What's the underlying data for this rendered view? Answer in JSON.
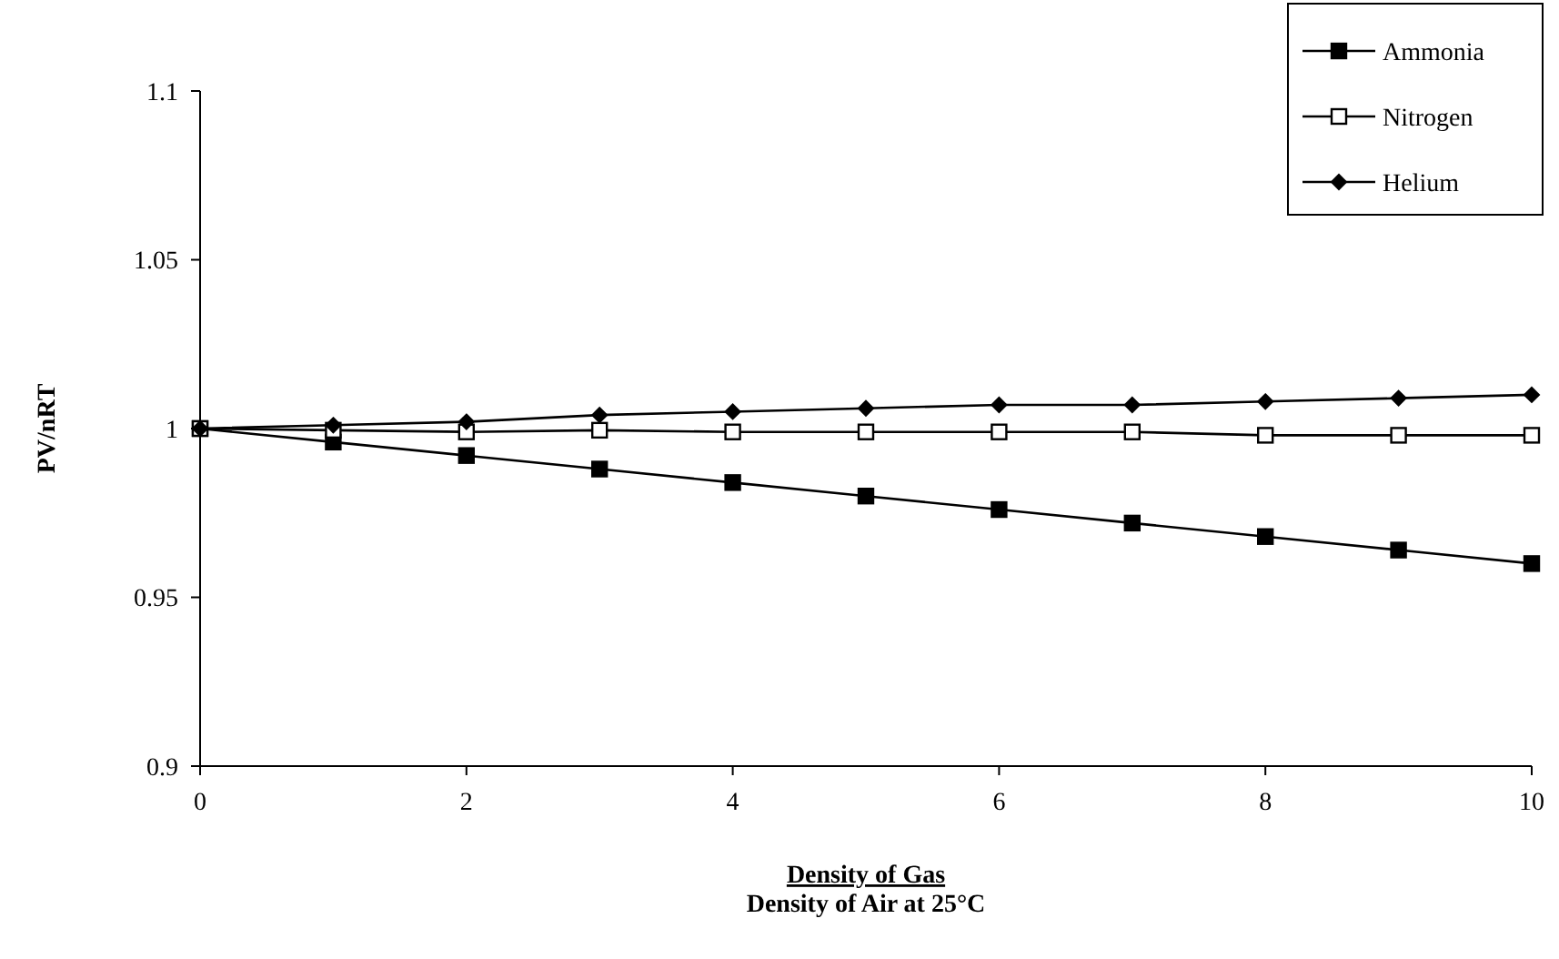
{
  "chart_data": {
    "type": "line",
    "xlabel": "Density of Gas\nDensity of Air at 25°C",
    "ylabel": "PV/nRT",
    "x": [
      0,
      1,
      2,
      3,
      4,
      5,
      6,
      7,
      8,
      9,
      10
    ],
    "xlim": [
      0,
      10
    ],
    "xticks": [
      0,
      2,
      4,
      6,
      8,
      10
    ],
    "ylim": [
      0.9,
      1.1
    ],
    "yticks": [
      0.9,
      0.95,
      1,
      1.05,
      1.1
    ],
    "grid": false,
    "legend": "top right",
    "line_style": "solid",
    "series": [
      {
        "name": "Ammonia",
        "color": "#000000",
        "marker": "square",
        "values": [
          1,
          0.996,
          0.992,
          0.988,
          0.984,
          0.98,
          0.976,
          0.972,
          0.968,
          0.964,
          0.96
        ]
      },
      {
        "name": "Nitrogen",
        "color": "#000000",
        "marker": "square",
        "values": [
          1,
          0.9995,
          0.999,
          0.9995,
          0.999,
          0.999,
          0.999,
          0.999,
          0.998,
          0.998,
          0.998
        ]
      },
      {
        "name": "Helium",
        "color": "#000000",
        "marker": "diamond",
        "values": [
          1,
          1.001,
          1.002,
          1.004,
          1.005,
          1.006,
          1.007,
          1.007,
          1.008,
          1.009,
          1.01
        ]
      }
    ]
  }
}
